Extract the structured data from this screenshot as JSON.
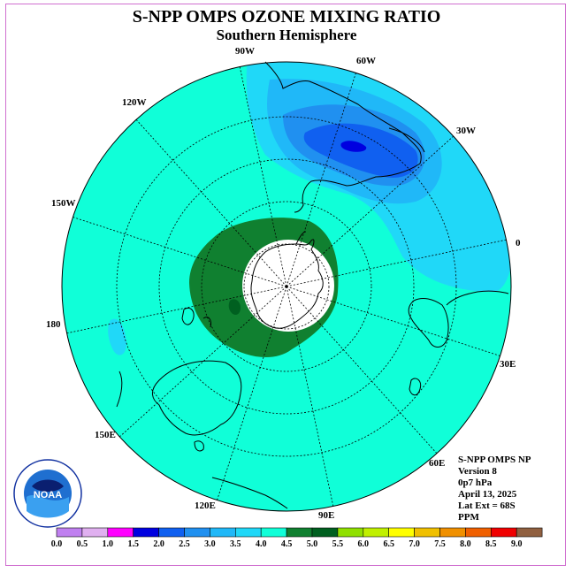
{
  "title": "S-NPP OMPS OZONE MIXING RATIO",
  "subtitle": "Southern Hemisphere",
  "info": {
    "instrument": "S-NPP OMPS NP",
    "version": "Version 8",
    "level": "0p7 hPa",
    "date": "April 13, 2025",
    "lat_ext": "Lat Ext = 68S",
    "units": "PPM"
  },
  "longitude_labels": [
    "90W",
    "60W",
    "30W",
    "0",
    "30E",
    "60E",
    "90E",
    "120E",
    "150E",
    "180",
    "150W",
    "120W"
  ],
  "logo": {
    "text": "NOAA",
    "ring_text": "NATIONAL OCEANIC AND ATMOSPHERIC ADMINISTRATION · U.S. DEPARTMENT OF COMMERCE"
  },
  "colorbar": {
    "labels": [
      "0.0",
      "0.5",
      "1.0",
      "1.5",
      "2.0",
      "2.5",
      "3.0",
      "3.5",
      "4.0",
      "4.5",
      "5.0",
      "5.5",
      "6.0",
      "6.5",
      "7.0",
      "7.5",
      "8.0",
      "8.5",
      "9.0"
    ],
    "colors": [
      "#c080f0",
      "#e0b0f0",
      "#ff00ff",
      "#0000e0",
      "#1060f0",
      "#2090f0",
      "#20b8f8",
      "#20d8f8",
      "#10ffd8",
      "#108030",
      "#006020",
      "#90e000",
      "#c0f000",
      "#ffff00",
      "#f0c000",
      "#f09000",
      "#f06000",
      "#f00000",
      "#906040"
    ]
  },
  "colors": {
    "background_field": "#10ffd8",
    "polar_night": "#ffffff"
  }
}
